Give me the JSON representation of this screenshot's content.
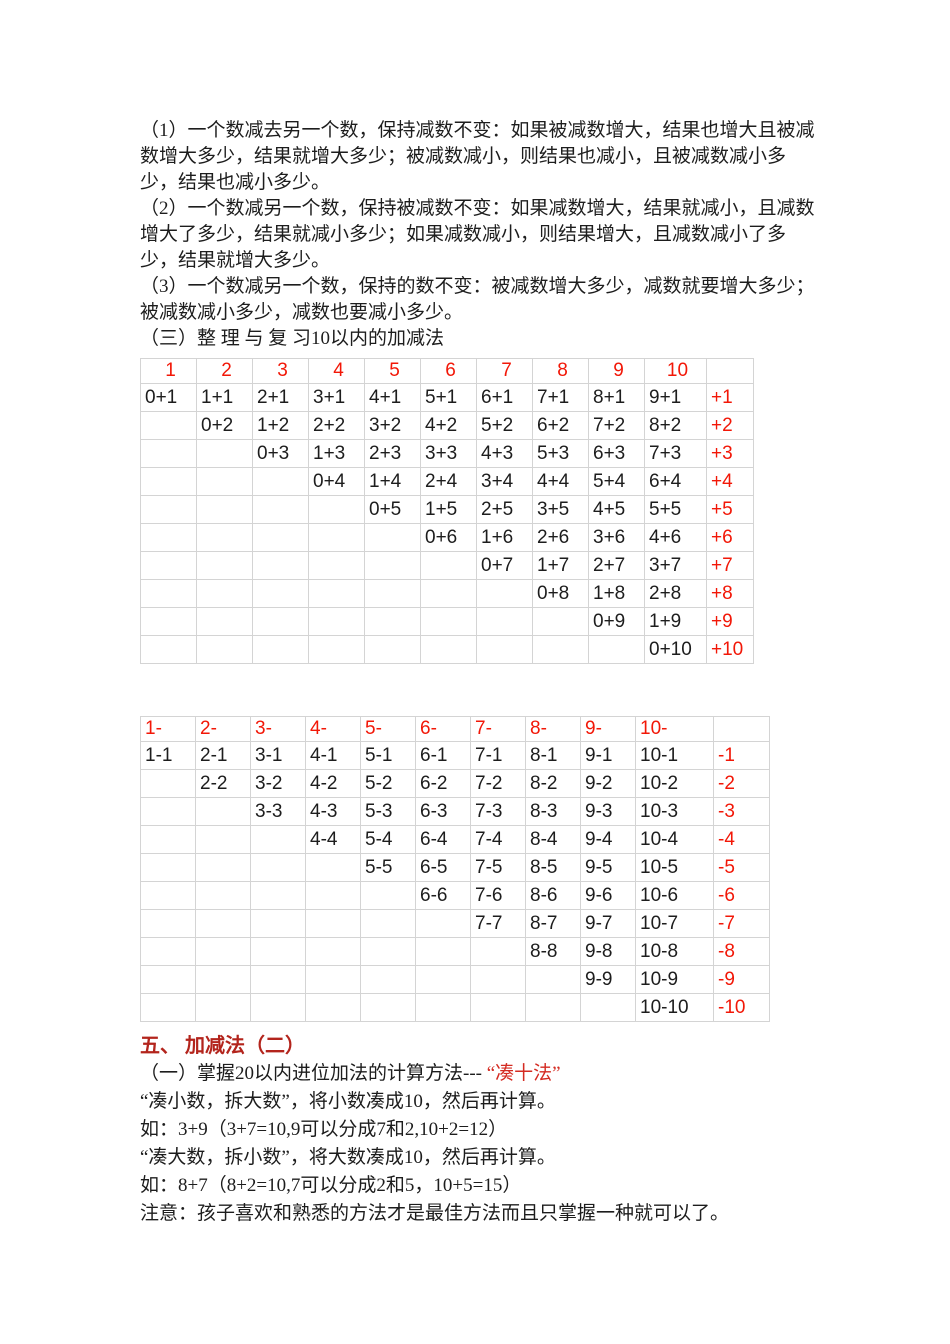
{
  "page": {
    "background": "#ffffff",
    "text_color": "#1d1d1d"
  },
  "colors": {
    "table_red": "#f21707",
    "heading_red": "#b3241c",
    "inline_red": "#d42b22",
    "border_gray": "#d4d4d4"
  },
  "intro_paragraphs": [
    "（1）一个数减去另一个数，保持减数不变：如果被减数增大，结果也增大且被减数增大多少，结果就增大多少；被减数减小，则结果也减小，且被减数减小多少，结果也减小多少。",
    "（2）一个数减另一个数，保持被减数不变：如果减数增大，结果就减小，且减数增大了多少，结果就减小多少；如果减数减小，则结果增大，且减数减小了多少，结果就增大多少。",
    "（3）一个数减另一个数，保持的数不变：被减数增大多少，减数就要增大多少；被减数减小多少，减数也要减小多少。",
    "（三）整 理 与 复 习10以内的加减法"
  ],
  "addition_table": {
    "header": [
      "1",
      "2",
      "3",
      "4",
      "5",
      "6",
      "7",
      "8",
      "9",
      "10",
      ""
    ],
    "rows": [
      [
        "0+1",
        "1+1",
        "2+1",
        "3+1",
        "4+1",
        "5+1",
        "6+1",
        "7+1",
        "8+1",
        "9+1",
        "+1"
      ],
      [
        "",
        "0+2",
        "1+2",
        "2+2",
        "3+2",
        "4+2",
        "5+2",
        "6+2",
        "7+2",
        "8+2",
        "+2"
      ],
      [
        "",
        "",
        "0+3",
        "1+3",
        "2+3",
        "3+3",
        "4+3",
        "5+3",
        "6+3",
        "7+3",
        "+3"
      ],
      [
        "",
        "",
        "",
        "0+4",
        "1+4",
        "2+4",
        "3+4",
        "4+4",
        "5+4",
        "6+4",
        "+4"
      ],
      [
        "",
        "",
        "",
        "",
        "0+5",
        "1+5",
        "2+5",
        "3+5",
        "4+5",
        "5+5",
        "+5"
      ],
      [
        "",
        "",
        "",
        "",
        "",
        "0+6",
        "1+6",
        "2+6",
        "3+6",
        "4+6",
        "+6"
      ],
      [
        "",
        "",
        "",
        "",
        "",
        "",
        "0+7",
        "1+7",
        "2+7",
        "3+7",
        "+7"
      ],
      [
        "",
        "",
        "",
        "",
        "",
        "",
        "",
        "0+8",
        "1+8",
        "2+8",
        "+8"
      ],
      [
        "",
        "",
        "",
        "",
        "",
        "",
        "",
        "",
        "0+9",
        "1+9",
        "+9"
      ],
      [
        "",
        "",
        "",
        "",
        "",
        "",
        "",
        "",
        "",
        "0+10",
        "+10"
      ]
    ]
  },
  "subtraction_table": {
    "header": [
      "1-",
      "2-",
      "3-",
      "4-",
      "5-",
      "6-",
      "7-",
      "8-",
      "9-",
      "10-",
      ""
    ],
    "rows": [
      [
        "1-1",
        "2-1",
        "3-1",
        "4-1",
        "5-1",
        "6-1",
        "7-1",
        "8-1",
        "9-1",
        "10-1",
        "-1"
      ],
      [
        "",
        "2-2",
        "3-2",
        "4-2",
        "5-2",
        "6-2",
        "7-2",
        "8-2",
        "9-2",
        "10-2",
        "-2"
      ],
      [
        "",
        "",
        "3-3",
        "4-3",
        "5-3",
        "6-3",
        "7-3",
        "8-3",
        "9-3",
        "10-3",
        "-3"
      ],
      [
        "",
        "",
        "",
        "4-4",
        "5-4",
        "6-4",
        "7-4",
        "8-4",
        "9-4",
        "10-4",
        "-4"
      ],
      [
        "",
        "",
        "",
        "",
        "5-5",
        "6-5",
        "7-5",
        "8-5",
        "9-5",
        "10-5",
        "-5"
      ],
      [
        "",
        "",
        "",
        "",
        "",
        "6-6",
        "7-6",
        "8-6",
        "9-6",
        "10-6",
        "-6"
      ],
      [
        "",
        "",
        "",
        "",
        "",
        "",
        "7-7",
        "8-7",
        "9-7",
        "10-7",
        "-7"
      ],
      [
        "",
        "",
        "",
        "",
        "",
        "",
        "",
        "8-8",
        "9-8",
        "10-8",
        "-8"
      ],
      [
        "",
        "",
        "",
        "",
        "",
        "",
        "",
        "",
        "9-9",
        "10-9",
        "-9"
      ],
      [
        "",
        "",
        "",
        "",
        "",
        "",
        "",
        "",
        "",
        "10-10",
        "-10"
      ]
    ]
  },
  "section_five": {
    "heading": "五、 加减法（二）",
    "line1_prefix": "（一）掌握20以内进位加法的计算方法--- ",
    "line1_highlight": "“凑十法”",
    "lines": [
      "“凑小数，拆大数”，将小数凑成10，然后再计算。",
      "如：3+9（3+7=10,9可以分成7和2,10+2=12）",
      "“凑大数，拆小数”，将大数凑成10，然后再计算。",
      "如：8+7（8+2=10,7可以分成2和5，10+5=15）",
      "注意：孩子喜欢和熟悉的方法才是最佳方法而且只掌握一种就可以了。"
    ]
  }
}
